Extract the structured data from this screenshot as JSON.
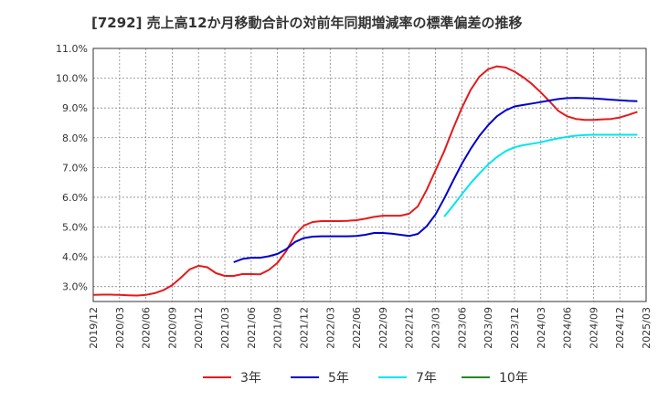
{
  "chart_data": {
    "type": "line",
    "title": "[7292]  売上高12か月移動合計の対前年同期増減率の標準偏差の推移",
    "xlabel": "",
    "ylabel": "",
    "ylim": [
      2.5,
      11.0
    ],
    "y_ticks": [
      "3.0%",
      "4.0%",
      "5.0%",
      "6.0%",
      "7.0%",
      "8.0%",
      "9.0%",
      "10.0%",
      "11.0%"
    ],
    "y_tick_values": [
      3.0,
      4.0,
      5.0,
      6.0,
      7.0,
      8.0,
      9.0,
      10.0,
      11.0
    ],
    "x_ticks": [
      "2019/12",
      "2020/03",
      "2020/06",
      "2020/09",
      "2020/12",
      "2021/03",
      "2021/06",
      "2021/09",
      "2021/12",
      "2022/03",
      "2022/06",
      "2022/09",
      "2022/12",
      "2023/03",
      "2023/06",
      "2023/09",
      "2023/12",
      "2024/03",
      "2024/06",
      "2024/09",
      "2024/12",
      "2025/03"
    ],
    "grid": true,
    "legend_position": "bottom",
    "x_start": "2019/12",
    "series": [
      {
        "name": "3年",
        "color": "#e41a1c",
        "start_month": 0,
        "values": [
          2.72,
          2.73,
          2.73,
          2.72,
          2.71,
          2.7,
          2.72,
          2.78,
          2.88,
          3.05,
          3.3,
          3.58,
          3.7,
          3.65,
          3.45,
          3.36,
          3.36,
          3.42,
          3.42,
          3.41,
          3.56,
          3.8,
          4.2,
          4.75,
          5.05,
          5.17,
          5.2,
          5.2,
          5.2,
          5.21,
          5.23,
          5.28,
          5.34,
          5.38,
          5.38,
          5.38,
          5.45,
          5.7,
          6.25,
          6.9,
          7.55,
          8.3,
          9.0,
          9.6,
          10.05,
          10.3,
          10.4,
          10.36,
          10.22,
          10.03,
          9.8,
          9.52,
          9.22,
          8.9,
          8.72,
          8.63,
          8.6,
          8.6,
          8.62,
          8.63,
          8.68,
          8.77,
          8.87
        ]
      },
      {
        "name": "5年",
        "color": "#0000cc",
        "start_month": 16,
        "values": [
          3.82,
          3.93,
          3.97,
          3.97,
          4.02,
          4.1,
          4.26,
          4.5,
          4.63,
          4.68,
          4.69,
          4.69,
          4.69,
          4.69,
          4.7,
          4.74,
          4.8,
          4.8,
          4.78,
          4.74,
          4.7,
          4.77,
          5.03,
          5.42,
          5.96,
          6.55,
          7.12,
          7.62,
          8.06,
          8.42,
          8.72,
          8.92,
          9.05,
          9.1,
          9.15,
          9.2,
          9.25,
          9.3,
          9.33,
          9.34,
          9.33,
          9.32,
          9.3,
          9.28,
          9.26,
          9.24,
          9.23
        ]
      },
      {
        "name": "7年",
        "color": "#00e5ee",
        "start_month": 40,
        "values": [
          5.35,
          5.72,
          6.1,
          6.47,
          6.8,
          7.1,
          7.35,
          7.55,
          7.68,
          7.75,
          7.8,
          7.85,
          7.92,
          7.98,
          8.03,
          8.07,
          8.09,
          8.1,
          8.1,
          8.1,
          8.1,
          8.1,
          8.1
        ]
      },
      {
        "name": "10年",
        "color": "#228b22",
        "start_month": 0,
        "values": []
      }
    ]
  }
}
